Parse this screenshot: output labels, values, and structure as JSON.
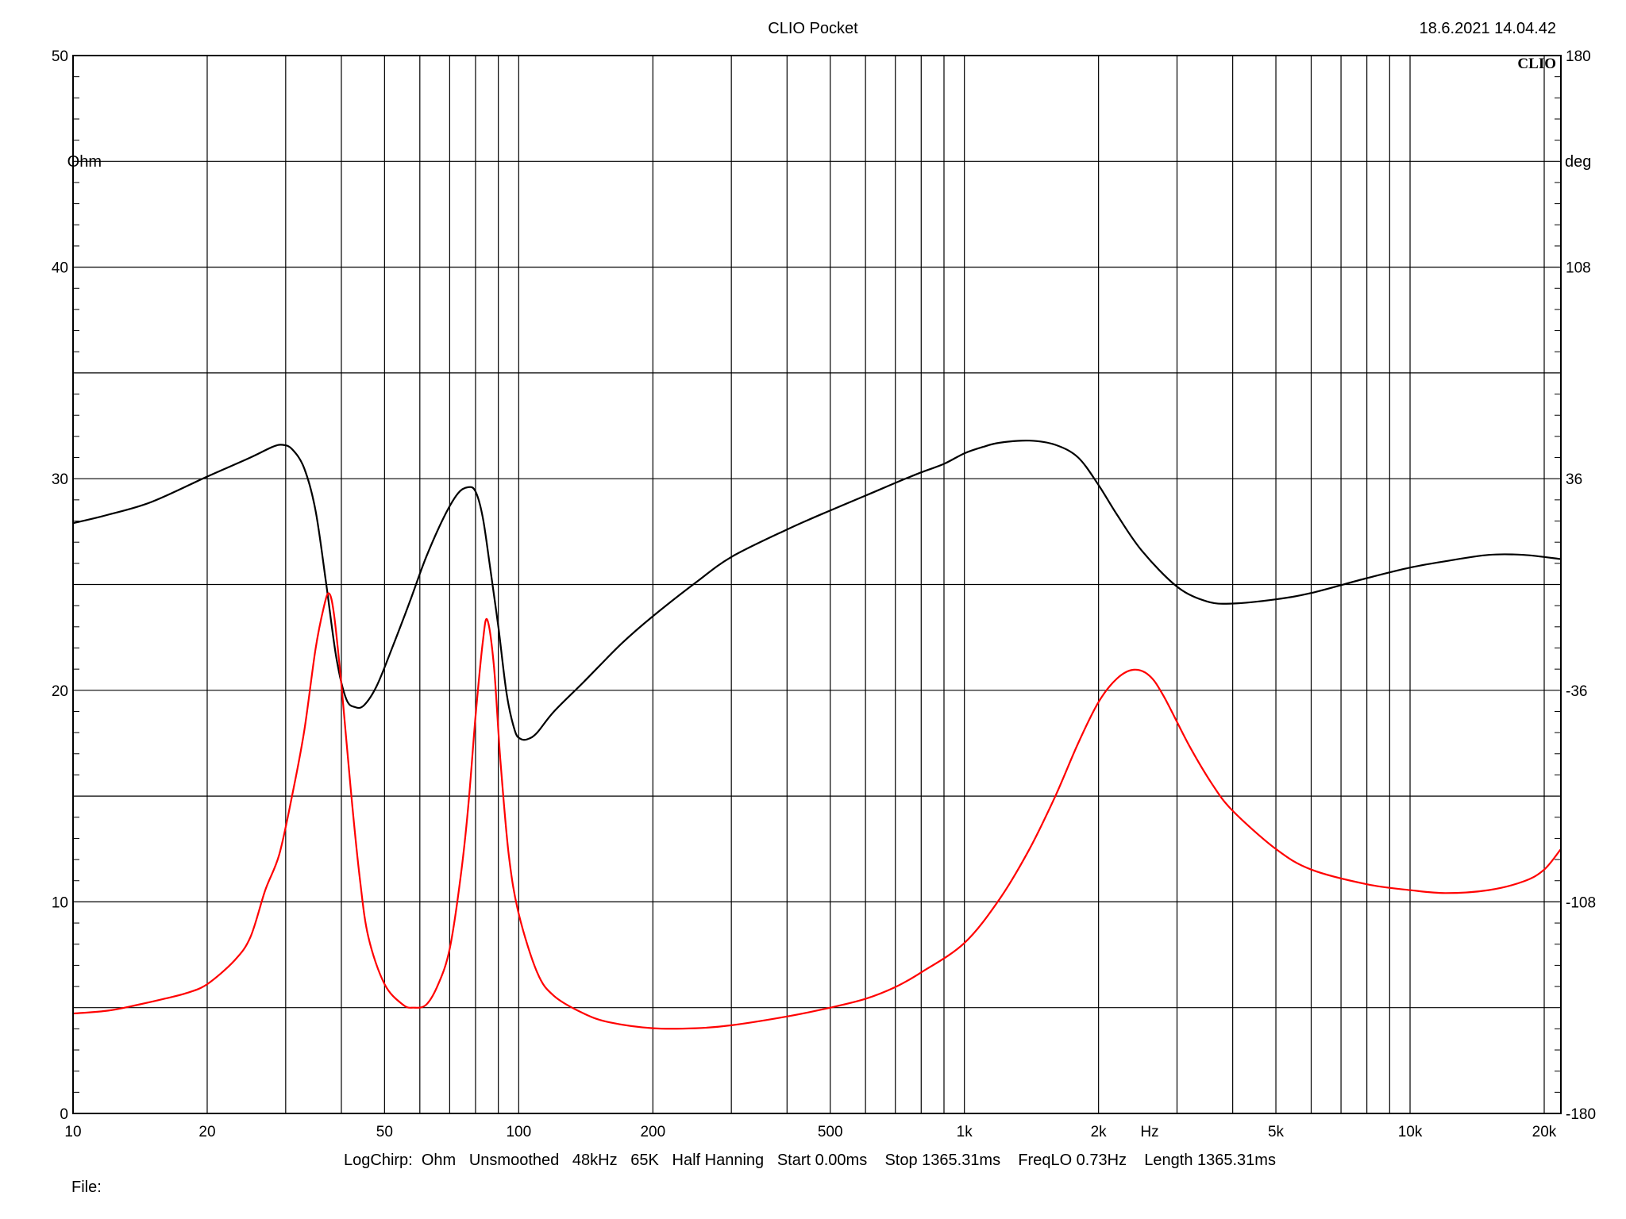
{
  "header": {
    "title": "CLIO Pocket",
    "timestamp": "18.6.2021 14.04.42",
    "logo": "CLIO"
  },
  "footer": {
    "settings": "LogChirp:  Ohm   Unsmoothed   48kHz   65K   Half Hanning   Start 0.00ms    Stop 1365.31ms    FreqLO 0.73Hz    Length 1365.31ms",
    "file_label": "File:"
  },
  "colors": {
    "magnitude": "#000000",
    "phase": "#ff0000",
    "grid": "#000000",
    "background": "#ffffff"
  },
  "chart_data": {
    "type": "line",
    "x_scale": "log",
    "xlim": [
      10,
      21800
    ],
    "x_ticks": [
      10,
      20,
      50,
      100,
      200,
      500,
      1000,
      2000,
      5000,
      10000,
      20000
    ],
    "x_tick_labels": [
      "10",
      "20",
      "50",
      "100",
      "200",
      "500",
      "1k",
      "2k",
      "5k",
      "10k",
      "20k"
    ],
    "x_unit_label": "Hz",
    "y_left": {
      "unit": "Ohm",
      "lim": [
        0,
        50
      ],
      "ticks": [
        0,
        10,
        20,
        30,
        40,
        50
      ],
      "tick_labels": [
        "0",
        "10",
        "20",
        "30",
        "40",
        "50"
      ]
    },
    "y_right": {
      "unit": "deg",
      "lim": [
        -180,
        180
      ],
      "ticks": [
        -180,
        -108,
        -36,
        36,
        108,
        180
      ],
      "tick_labels": [
        "-180",
        "-108",
        "-36",
        "36",
        "108",
        "180"
      ]
    },
    "grid": true,
    "series": [
      {
        "axis": "left",
        "color": "#000000",
        "points": [
          [
            10,
            27.9
          ],
          [
            12,
            28.3
          ],
          [
            15,
            28.9
          ],
          [
            20,
            30.1
          ],
          [
            25,
            31.0
          ],
          [
            28,
            31.5
          ],
          [
            29.5,
            31.6
          ],
          [
            31,
            31.4
          ],
          [
            33,
            30.5
          ],
          [
            35,
            28.5
          ],
          [
            37,
            25.0
          ],
          [
            39,
            21.5
          ],
          [
            41,
            19.6
          ],
          [
            43,
            19.2
          ],
          [
            45,
            19.3
          ],
          [
            48,
            20.2
          ],
          [
            52,
            22.0
          ],
          [
            57,
            24.2
          ],
          [
            62,
            26.3
          ],
          [
            68,
            28.2
          ],
          [
            73,
            29.3
          ],
          [
            77,
            29.6
          ],
          [
            80,
            29.4
          ],
          [
            83,
            28.2
          ],
          [
            86,
            26.0
          ],
          [
            90,
            23.0
          ],
          [
            94,
            19.8
          ],
          [
            98,
            18.1
          ],
          [
            101,
            17.7
          ],
          [
            105,
            17.7
          ],
          [
            110,
            18.0
          ],
          [
            120,
            19.0
          ],
          [
            140,
            20.4
          ],
          [
            170,
            22.2
          ],
          [
            200,
            23.5
          ],
          [
            250,
            25.1
          ],
          [
            300,
            26.3
          ],
          [
            400,
            27.6
          ],
          [
            500,
            28.5
          ],
          [
            600,
            29.2
          ],
          [
            700,
            29.8
          ],
          [
            800,
            30.3
          ],
          [
            900,
            30.7
          ],
          [
            1000,
            31.2
          ],
          [
            1100,
            31.5
          ],
          [
            1200,
            31.7
          ],
          [
            1400,
            31.8
          ],
          [
            1600,
            31.6
          ],
          [
            1800,
            31.0
          ],
          [
            2000,
            29.7
          ],
          [
            2200,
            28.3
          ],
          [
            2500,
            26.6
          ],
          [
            3000,
            24.9
          ],
          [
            3500,
            24.2
          ],
          [
            4000,
            24.1
          ],
          [
            5000,
            24.3
          ],
          [
            6000,
            24.6
          ],
          [
            8000,
            25.3
          ],
          [
            10000,
            25.8
          ],
          [
            12000,
            26.1
          ],
          [
            15000,
            26.4
          ],
          [
            18000,
            26.4
          ],
          [
            21800,
            26.2
          ]
        ]
      },
      {
        "axis": "right",
        "color": "#ff0000",
        "points": [
          [
            10,
            -146
          ],
          [
            12,
            -145
          ],
          [
            14,
            -143
          ],
          [
            16,
            -141
          ],
          [
            18,
            -139
          ],
          [
            20,
            -136
          ],
          [
            23,
            -128
          ],
          [
            25,
            -120
          ],
          [
            27,
            -104
          ],
          [
            29,
            -92
          ],
          [
            31,
            -72
          ],
          [
            33,
            -50
          ],
          [
            35,
            -22
          ],
          [
            36.5,
            -8
          ],
          [
            37.5,
            -3
          ],
          [
            38.5,
            -10
          ],
          [
            40,
            -34
          ],
          [
            42,
            -70
          ],
          [
            44,
            -100
          ],
          [
            46,
            -120
          ],
          [
            50,
            -136
          ],
          [
            55,
            -143
          ],
          [
            58,
            -144
          ],
          [
            62,
            -143
          ],
          [
            66,
            -136
          ],
          [
            70,
            -124
          ],
          [
            74,
            -100
          ],
          [
            77,
            -76
          ],
          [
            80,
            -45
          ],
          [
            83,
            -20
          ],
          [
            85,
            -12
          ],
          [
            88,
            -28
          ],
          [
            91,
            -60
          ],
          [
            95,
            -92
          ],
          [
            100,
            -112
          ],
          [
            110,
            -132
          ],
          [
            120,
            -140
          ],
          [
            140,
            -146
          ],
          [
            160,
            -149
          ],
          [
            200,
            -151
          ],
          [
            250,
            -151
          ],
          [
            300,
            -150
          ],
          [
            400,
            -147
          ],
          [
            500,
            -144
          ],
          [
            600,
            -141
          ],
          [
            700,
            -137
          ],
          [
            800,
            -132
          ],
          [
            1000,
            -122
          ],
          [
            1200,
            -107
          ],
          [
            1400,
            -90
          ],
          [
            1600,
            -72
          ],
          [
            1800,
            -54
          ],
          [
            2000,
            -40
          ],
          [
            2200,
            -32
          ],
          [
            2400,
            -29
          ],
          [
            2600,
            -31
          ],
          [
            2800,
            -38
          ],
          [
            3200,
            -55
          ],
          [
            3600,
            -68
          ],
          [
            4000,
            -77
          ],
          [
            5000,
            -90
          ],
          [
            6000,
            -97
          ],
          [
            8000,
            -102
          ],
          [
            10000,
            -104
          ],
          [
            12000,
            -105
          ],
          [
            15000,
            -104
          ],
          [
            18000,
            -101
          ],
          [
            20000,
            -97
          ],
          [
            21800,
            -90
          ]
        ]
      }
    ]
  }
}
